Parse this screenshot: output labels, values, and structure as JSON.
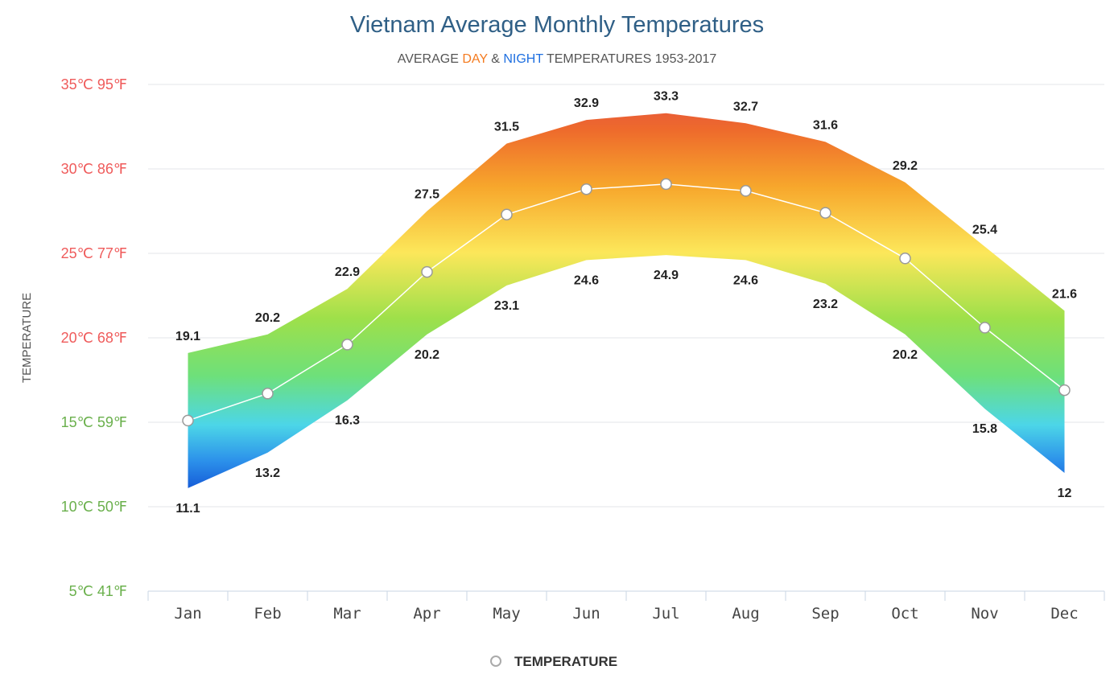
{
  "chart_data": {
    "type": "area",
    "title": "Vietnam Average Monthly Temperatures",
    "subtitle": {
      "prefix": "AVERAGE ",
      "day": "DAY",
      "amp": " & ",
      "night": "NIGHT",
      "suffix": " TEMPERATURES 1953-2017"
    },
    "ylabel": "TEMPERATURE",
    "categories": [
      "Jan",
      "Feb",
      "Mar",
      "Apr",
      "May",
      "Jun",
      "Jul",
      "Aug",
      "Sep",
      "Oct",
      "Nov",
      "Dec"
    ],
    "ylim": [
      5,
      35
    ],
    "yticks": [
      {
        "value": 35,
        "label": "35℃ 95℉"
      },
      {
        "value": 30,
        "label": "30℃ 86℉"
      },
      {
        "value": 25,
        "label": "25℃ 77℉"
      },
      {
        "value": 20,
        "label": "20℃ 68℉"
      },
      {
        "value": 15,
        "label": "15℃ 59℉"
      },
      {
        "value": 10,
        "label": "10℃ 50℉"
      },
      {
        "value": 5,
        "label": "5℃ 41℉"
      }
    ],
    "series": [
      {
        "name": "Day",
        "values": [
          19.1,
          20.2,
          22.9,
          27.5,
          31.5,
          32.9,
          33.3,
          32.7,
          31.6,
          29.2,
          25.4,
          21.6
        ]
      },
      {
        "name": "Night",
        "values": [
          11.1,
          13.2,
          16.3,
          20.2,
          23.1,
          24.6,
          24.9,
          24.6,
          23.2,
          20.2,
          15.8,
          12
        ]
      },
      {
        "name": "TEMPERATURE",
        "values": [
          15.1,
          16.7,
          19.6,
          23.9,
          27.3,
          28.8,
          29.1,
          28.7,
          27.4,
          24.7,
          20.6,
          16.9
        ]
      }
    ],
    "legend": {
      "label": "TEMPERATURE",
      "position": "bottom-center"
    },
    "grid": true
  },
  "colors": {
    "title": "#2f5f86",
    "subtitle": "#555555",
    "day": "#f47b20",
    "night": "#1e6fe0",
    "ytick_warm": "#ef5b5b",
    "ytick_cool": "#6ab04c",
    "grid": "#e3e6e8",
    "axis": "#c9d6e3"
  }
}
